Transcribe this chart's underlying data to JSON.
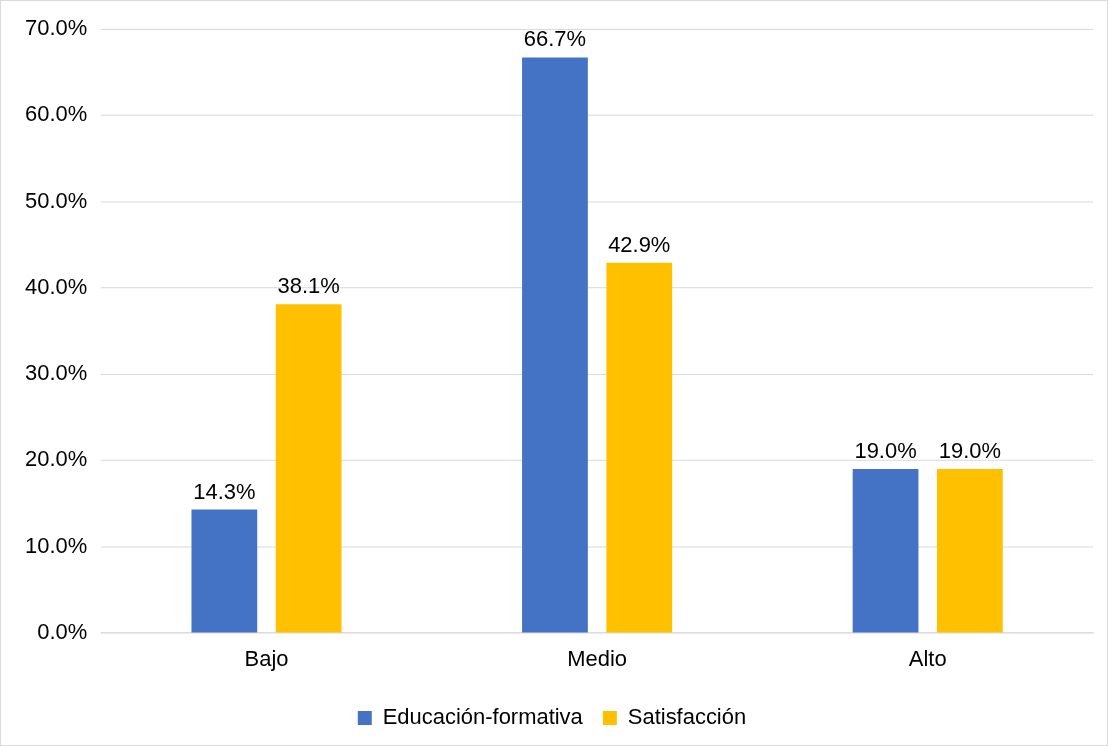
{
  "chart_data": {
    "type": "bar",
    "categories": [
      "Bajo",
      "Medio",
      "Alto"
    ],
    "series": [
      {
        "name": "Educación-formativa",
        "color": "#4472c4",
        "values": [
          14.3,
          66.7,
          19.0
        ],
        "value_labels": [
          "14.3%",
          "66.7%",
          "19.0%"
        ]
      },
      {
        "name": "Satisfacción",
        "color": "#ffc000",
        "values": [
          38.1,
          42.9,
          19.0
        ],
        "value_labels": [
          "38.1%",
          "42.9%",
          "19.0%"
        ]
      }
    ],
    "ylim": [
      0,
      70
    ],
    "yticks": [
      {
        "value": 0,
        "label": "0.0%"
      },
      {
        "value": 10,
        "label": "10.0%"
      },
      {
        "value": 20,
        "label": "20.0%"
      },
      {
        "value": 30,
        "label": "30.0%"
      },
      {
        "value": 40,
        "label": "40.0%"
      },
      {
        "value": 50,
        "label": "50.0%"
      },
      {
        "value": 60,
        "label": "60.0%"
      },
      {
        "value": 70,
        "label": "70.0%"
      }
    ],
    "grid": "y",
    "legend": "bottom"
  }
}
